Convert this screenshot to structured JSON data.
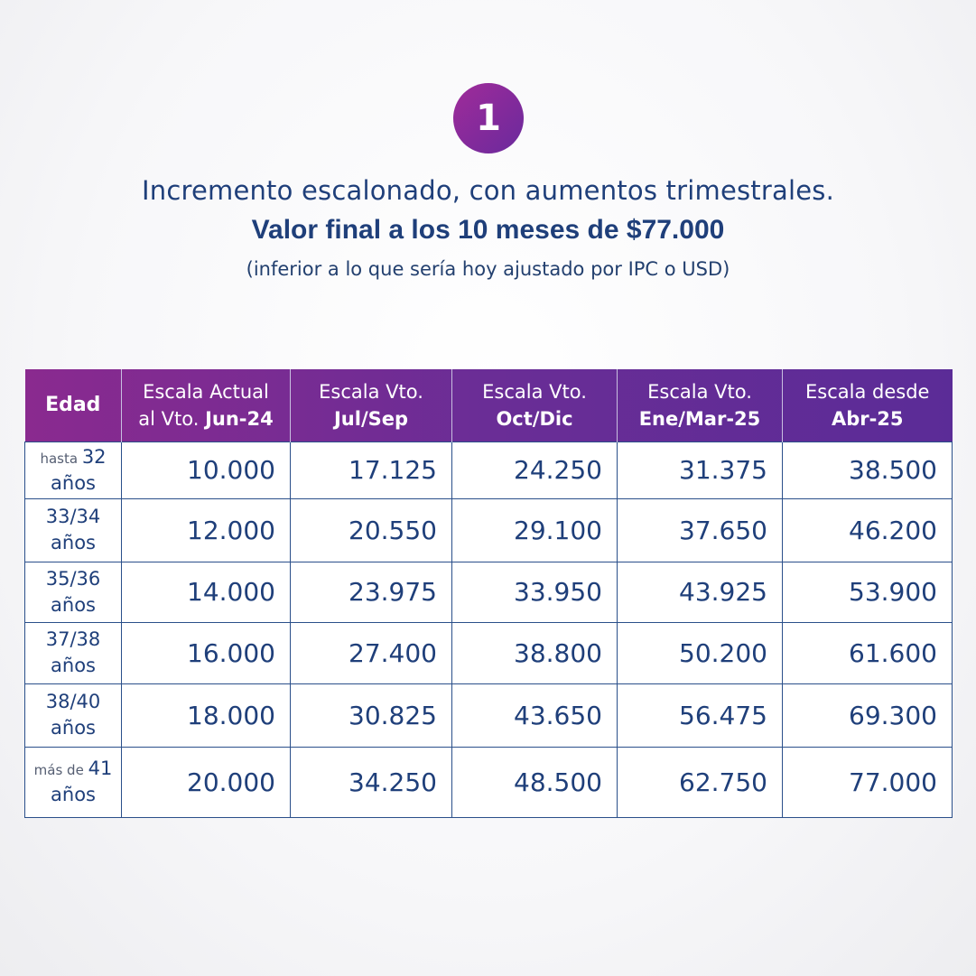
{
  "badge_number": "1",
  "headline": {
    "line1": "Incremento escalonado, con aumentos trimestrales.",
    "line2": "Valor final a los 10 meses de $77.000",
    "line3": "(inferior a lo que sería hoy ajustado por IPC o USD)"
  },
  "colors": {
    "header_start": "#8a2a8f",
    "header_end": "#5b2c97",
    "text": "#1f3f7a"
  },
  "table": {
    "headers": [
      {
        "top": "",
        "bottom_prefix": "",
        "bottom_bold": "Edad"
      },
      {
        "top": "Escala Actual",
        "bottom_prefix": "al Vto. ",
        "bottom_bold": "Jun-24"
      },
      {
        "top": "Escala Vto.",
        "bottom_prefix": "",
        "bottom_bold": "Jul/Sep"
      },
      {
        "top": "Escala Vto.",
        "bottom_prefix": "",
        "bottom_bold": "Oct/Dic"
      },
      {
        "top": "Escala Vto.",
        "bottom_prefix": "",
        "bottom_bold": "Ene/Mar-25"
      },
      {
        "top": "Escala desde",
        "bottom_prefix": "",
        "bottom_bold": "Abr-25"
      }
    ],
    "rows": [
      {
        "age_prefix": "hasta ",
        "age_main": "32",
        "age_unit": "años",
        "values": [
          "10.000",
          "17.125",
          "24.250",
          "31.375",
          "38.500"
        ]
      },
      {
        "age_prefix": "",
        "age_main": "33/34",
        "age_unit": "años",
        "values": [
          "12.000",
          "20.550",
          "29.100",
          "37.650",
          "46.200"
        ]
      },
      {
        "age_prefix": "",
        "age_main": "35/36",
        "age_unit": "años",
        "values": [
          "14.000",
          "23.975",
          "33.950",
          "43.925",
          "53.900"
        ]
      },
      {
        "age_prefix": "",
        "age_main": "37/38",
        "age_unit": "años",
        "values": [
          "16.000",
          "27.400",
          "38.800",
          "50.200",
          "61.600"
        ]
      },
      {
        "age_prefix": "",
        "age_main": "38/40",
        "age_unit": "años",
        "values": [
          "18.000",
          "30.825",
          "43.650",
          "56.475",
          "69.300"
        ]
      },
      {
        "age_prefix": "más de ",
        "age_main": "41",
        "age_unit": "años",
        "values": [
          "20.000",
          "34.250",
          "48.500",
          "62.750",
          "77.000"
        ]
      }
    ]
  }
}
